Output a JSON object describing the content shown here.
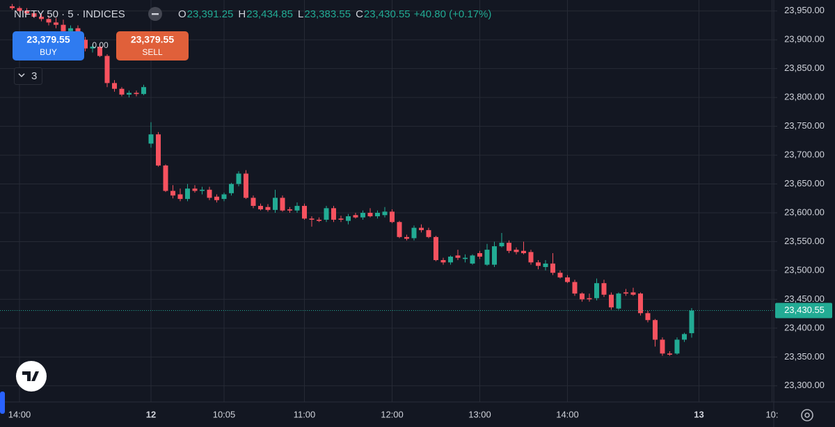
{
  "chart_data": {
    "type": "candlestick",
    "symbol": "NIFTY 50 · 5 · INDICES",
    "ohlc_legend": [
      {
        "key": "O",
        "value": "23,391.25"
      },
      {
        "key": "H",
        "value": "23,434.85"
      },
      {
        "key": "L",
        "value": "23,383.55"
      },
      {
        "key": "C",
        "value": "23,430.55"
      }
    ],
    "change": "+40.80 (+0.17%)",
    "buy": {
      "price": "23,379.55",
      "label": "BUY"
    },
    "sell": {
      "price": "23,379.55",
      "label": "SELL"
    },
    "spread": "0.00",
    "indicator_count": "3",
    "up_color": "#22ab94",
    "down_color": "#f7525f",
    "grid": true,
    "categories": [
      null,
      "14:00",
      null,
      null,
      null,
      null,
      null,
      null,
      null,
      null,
      null,
      null,
      null,
      null,
      null,
      null,
      null,
      null,
      null,
      "12",
      null,
      null,
      null,
      null,
      null,
      null,
      null,
      null,
      null,
      "10:05",
      null,
      null,
      null,
      null,
      null,
      null,
      null,
      null,
      null,
      null,
      "11:00",
      null,
      null,
      null,
      null,
      null,
      null,
      null,
      null,
      null,
      null,
      null,
      "12:00",
      null,
      null,
      null,
      null,
      null,
      null,
      null,
      null,
      null,
      null,
      null,
      "13:00",
      null,
      null,
      null,
      null,
      null,
      null,
      null,
      null,
      null,
      null,
      null,
      "14:00",
      null,
      null,
      null,
      null,
      null,
      null,
      null,
      null,
      null,
      null,
      null,
      null,
      null,
      null,
      null,
      null,
      null,
      "13",
      null,
      null,
      null,
      null,
      null,
      null,
      null,
      null,
      null,
      "10:"
    ],
    "open": [
      23958,
      23955,
      23950,
      23946,
      23940,
      23936,
      23930,
      23926,
      23915,
      23920,
      23900,
      23885,
      23888,
      23872,
      23825,
      23815,
      23805,
      23808,
      23806,
      23720,
      23736,
      23682,
      23638,
      23632,
      23624,
      23642,
      23638,
      23640,
      23628,
      23624,
      23634,
      23650,
      23668,
      23626,
      23612,
      23610,
      23605,
      23626,
      23606,
      23604,
      23612,
      23590,
      23588,
      23588,
      23608,
      23590,
      23586,
      23596,
      23592,
      23600,
      23594,
      23596,
      23602,
      23584,
      23558,
      23556,
      23574,
      23570,
      23558,
      23518,
      23514,
      23526,
      23520,
      23512,
      23530,
      23510,
      23510,
      23542,
      23548,
      23536,
      23534,
      23532,
      23514,
      23506,
      23512,
      23496,
      23488,
      23480,
      23460,
      23452,
      23452,
      23478,
      23458,
      23434,
      23462,
      23462,
      23460,
      23426,
      23414,
      23380,
      23356,
      23356,
      23380,
      23391.25,
      null,
      null,
      null,
      null,
      null,
      null,
      null,
      null,
      null,
      null,
      null
    ],
    "high": [
      23962,
      23958,
      23955,
      23950,
      23945,
      23942,
      23938,
      23935,
      23925,
      23925,
      23905,
      23892,
      23890,
      23875,
      23830,
      23818,
      23812,
      23812,
      23822,
      23757,
      23740,
      23684,
      23648,
      23642,
      23650,
      23648,
      23645,
      23645,
      23632,
      23635,
      23652,
      23672,
      23674,
      23630,
      23616,
      23615,
      23640,
      23630,
      23610,
      23618,
      23616,
      23594,
      23592,
      23612,
      23612,
      23595,
      23598,
      23600,
      23604,
      23608,
      23604,
      23610,
      23606,
      23586,
      23562,
      23578,
      23580,
      23574,
      23560,
      23522,
      23526,
      23536,
      23528,
      23528,
      23534,
      23546,
      23550,
      23565,
      23552,
      23540,
      23550,
      23536,
      23518,
      23518,
      23530,
      23500,
      23492,
      23484,
      23462,
      23460,
      23486,
      23484,
      23462,
      23462,
      23468,
      23470,
      23462,
      23430,
      23416,
      23384,
      23360,
      23384,
      23392,
      23434.85,
      null,
      null,
      null,
      null,
      null,
      null,
      null,
      null,
      null,
      null,
      null
    ],
    "low": [
      23952,
      23948,
      23944,
      23938,
      23932,
      23925,
      23920,
      23912,
      23905,
      23895,
      23880,
      23878,
      23870,
      23818,
      23810,
      23802,
      23800,
      23802,
      23804,
      23713,
      23680,
      23636,
      23625,
      23620,
      23620,
      23635,
      23632,
      23622,
      23618,
      23620,
      23630,
      23646,
      23624,
      23608,
      23604,
      23602,
      23600,
      23602,
      23600,
      23600,
      23588,
      23576,
      23584,
      23584,
      23584,
      23584,
      23580,
      23590,
      23588,
      23592,
      23590,
      23592,
      23582,
      23556,
      23552,
      23552,
      23566,
      23556,
      23516,
      23510,
      23510,
      23518,
      23514,
      23510,
      23520,
      23508,
      23506,
      23540,
      23530,
      23528,
      23528,
      23510,
      23502,
      23500,
      23492,
      23486,
      23478,
      23456,
      23446,
      23446,
      23448,
      23454,
      23432,
      23432,
      23456,
      23456,
      23422,
      23410,
      23368,
      23352,
      23352,
      23354,
      23376,
      23383.55,
      null,
      null,
      null,
      null,
      null,
      null,
      null,
      null,
      null,
      null,
      null
    ],
    "close": [
      23955,
      23950,
      23946,
      23940,
      23936,
      23930,
      23926,
      23915,
      23920,
      23900,
      23885,
      23888,
      23872,
      23825,
      23815,
      23805,
      23808,
      23806,
      23818,
      23736,
      23682,
      23638,
      23630,
      23624,
      23642,
      23638,
      23640,
      23626,
      23622,
      23632,
      23650,
      23668,
      23626,
      23612,
      23606,
      23605,
      23626,
      23604,
      23604,
      23612,
      23590,
      23588,
      23586,
      23608,
      23588,
      23588,
      23594,
      23592,
      23600,
      23594,
      23600,
      23602,
      23584,
      23558,
      23555,
      23574,
      23570,
      23558,
      23518,
      23514,
      23524,
      23522,
      23522,
      23526,
      23524,
      23536,
      23542,
      23548,
      23534,
      23532,
      23530,
      23514,
      23508,
      23512,
      23496,
      23488,
      23480,
      23460,
      23450,
      23450,
      23478,
      23458,
      23436,
      23460,
      23460,
      23458,
      23426,
      23414,
      23380,
      23356,
      23354,
      23380,
      23389.75,
      23430.55,
      null,
      null,
      null,
      null,
      null,
      null,
      null,
      null,
      null,
      null,
      null
    ],
    "last_price": {
      "value": 23430.55,
      "label": "23,430.55"
    },
    "ylim": [
      23272,
      23969
    ],
    "yticks": [
      {
        "value": 23950,
        "label": "23,950.00"
      },
      {
        "value": 23900,
        "label": "23,900.00"
      },
      {
        "value": 23850,
        "label": "23,850.00"
      },
      {
        "value": 23800,
        "label": "23,800.00"
      },
      {
        "value": 23750,
        "label": "23,750.00"
      },
      {
        "value": 23700,
        "label": "23,700.00"
      },
      {
        "value": 23650,
        "label": "23,650.00"
      },
      {
        "value": 23600,
        "label": "23,600.00"
      },
      {
        "value": 23550,
        "label": "23,550.00"
      },
      {
        "value": 23500,
        "label": "23,500.00"
      },
      {
        "value": 23450,
        "label": "23,450.00"
      },
      {
        "value": 23400,
        "label": "23,400.00"
      },
      {
        "value": 23350,
        "label": "23,350.00"
      },
      {
        "value": 23300,
        "label": "23,300.00"
      }
    ]
  }
}
